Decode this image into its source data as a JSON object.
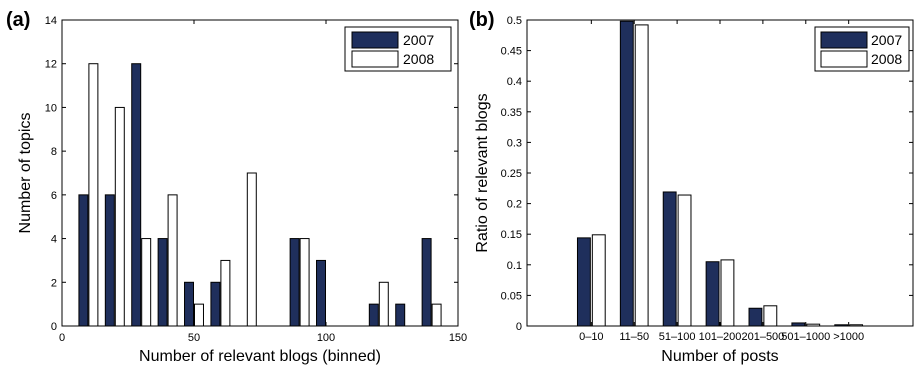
{
  "colors": {
    "series_2007": "#1f2f5c",
    "series_2008": "#ffffff",
    "stroke": "#000000"
  },
  "chart_data": [
    {
      "panel": "(a)",
      "type": "bar",
      "xlabel": "Number of relevant blogs (binned)",
      "ylabel": "Number of topics",
      "xlim": [
        0,
        150
      ],
      "ylim": [
        0,
        14
      ],
      "xticks": [
        0,
        50,
        100,
        150
      ],
      "yticks": [
        0,
        2,
        4,
        6,
        8,
        10,
        12,
        14
      ],
      "grid": false,
      "legend_position": "top-right",
      "bin_width": 10,
      "x": [
        10,
        20,
        30,
        40,
        50,
        60,
        70,
        80,
        90,
        100,
        110,
        120,
        130,
        140
      ],
      "series": [
        {
          "name": "2007",
          "values": [
            6,
            6,
            12,
            4,
            2,
            2,
            0,
            0,
            4,
            3,
            0,
            1,
            1,
            4
          ]
        },
        {
          "name": "2008",
          "values": [
            12,
            10,
            4,
            6,
            1,
            3,
            7,
            0,
            4,
            0,
            0,
            2,
            0,
            1
          ]
        }
      ]
    },
    {
      "panel": "(b)",
      "type": "bar",
      "xlabel": "Number of posts",
      "ylabel": "Ratio of relevant blogs",
      "ylim": [
        0,
        0.5
      ],
      "yticks": [
        0,
        0.05,
        0.1,
        0.15,
        0.2,
        0.25,
        0.3,
        0.35,
        0.4,
        0.45,
        0.5
      ],
      "grid": false,
      "legend_position": "top-right",
      "categories": [
        "0–10",
        "11–50",
        "51–100",
        "101–200",
        "201–500",
        "501–1000",
        ">1000"
      ],
      "series": [
        {
          "name": "2007",
          "values": [
            0.144,
            0.498,
            0.219,
            0.105,
            0.029,
            0.005,
            0.002
          ]
        },
        {
          "name": "2008",
          "values": [
            0.149,
            0.492,
            0.214,
            0.108,
            0.033,
            0.003,
            0.002
          ]
        }
      ]
    }
  ]
}
